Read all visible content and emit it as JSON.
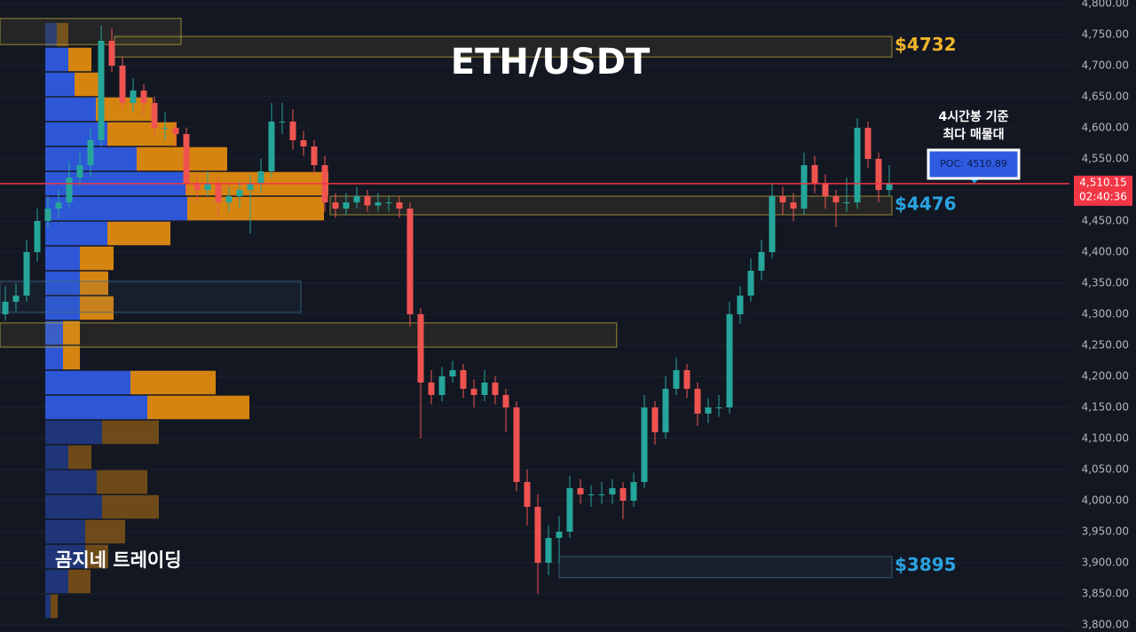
{
  "chart_data": {
    "type": "candlestick",
    "title": "ETH/USDT",
    "watermark": "곰지네 트레이딩",
    "annotation": [
      "4시간봉 기준",
      "최다 매물대"
    ],
    "poc": {
      "value": 4510.89,
      "label": "POC: 4510.89"
    },
    "current_price": {
      "value": 4510.15,
      "label": "4,510.15"
    },
    "countdown": "02:40:36",
    "up_color": "#26a69a",
    "down_color": "#ef5350",
    "grid": true,
    "ylim": [
      3800,
      4800
    ],
    "yticks": [
      {
        "value": 3800,
        "label": "3,800.00"
      },
      {
        "value": 3850,
        "label": "3,850.00"
      },
      {
        "value": 3900,
        "label": "3,900.00"
      },
      {
        "value": 3950,
        "label": "3,950.00"
      },
      {
        "value": 4000,
        "label": "4,000.00"
      },
      {
        "value": 4050,
        "label": "4,050.00"
      },
      {
        "value": 4100,
        "label": "4,100.00"
      },
      {
        "value": 4150,
        "label": "4,150.00"
      },
      {
        "value": 4200,
        "label": "4,200.00"
      },
      {
        "value": 4250,
        "label": "4,250.00"
      },
      {
        "value": 4300,
        "label": "4,300.00"
      },
      {
        "value": 4350,
        "label": "4,350.00"
      },
      {
        "value": 4400,
        "label": "4,400.00"
      },
      {
        "value": 4450,
        "label": "4,450.00"
      },
      {
        "value": 4500,
        "label": "4,500.00"
      },
      {
        "value": 4550,
        "label": "4,550.00"
      },
      {
        "value": 4600,
        "label": "4,600.00"
      },
      {
        "value": 4650,
        "label": "4,650.00"
      },
      {
        "value": 4700,
        "label": "4,700.00"
      },
      {
        "value": 4750,
        "label": "4,750.00"
      },
      {
        "value": 4800,
        "label": "4,800.00"
      }
    ],
    "open": [
      4300,
      4320,
      4330,
      4400,
      4450,
      4470,
      4480,
      4520,
      4540,
      4580,
      4740,
      4700,
      4640,
      4660,
      4640,
      4600,
      4600,
      4590,
      4510,
      4500,
      4510,
      4480,
      4490,
      4500,
      4510,
      4530,
      4610,
      4610,
      4580,
      4570,
      4540,
      4480,
      4470,
      4480,
      4490,
      4475,
      4480,
      4480,
      4470,
      4300,
      4190,
      4170,
      4200,
      4210,
      4180,
      4170,
      4190,
      4170,
      4150,
      4030,
      3990,
      3900,
      3940,
      3950,
      4020,
      4010,
      4010,
      4010,
      4020,
      4000,
      4030,
      4150,
      4110,
      4180,
      4210,
      4180,
      4140,
      4150,
      4150,
      4300,
      4330,
      4370,
      4400,
      4490,
      4480,
      4470,
      4540,
      4510,
      4490,
      4480,
      4480,
      4600,
      4550,
      4500
    ],
    "high": [
      4345,
      4350,
      4420,
      4470,
      4490,
      4500,
      4545,
      4560,
      4600,
      4765,
      4760,
      4715,
      4680,
      4670,
      4650,
      4625,
      4610,
      4600,
      4525,
      4530,
      4520,
      4505,
      4515,
      4525,
      4550,
      4640,
      4640,
      4630,
      4595,
      4580,
      4555,
      4495,
      4495,
      4505,
      4500,
      4495,
      4490,
      4490,
      4480,
      4310,
      4210,
      4215,
      4225,
      4220,
      4195,
      4210,
      4200,
      4180,
      4160,
      4050,
      4010,
      3960,
      3975,
      4040,
      4035,
      4025,
      4030,
      4035,
      4030,
      4045,
      4170,
      4160,
      4200,
      4230,
      4220,
      4190,
      4165,
      4170,
      4320,
      4345,
      4390,
      4420,
      4510,
      4505,
      4495,
      4560,
      4555,
      4525,
      4500,
      4520,
      4615,
      4610,
      4560,
      4540
    ],
    "low": [
      4290,
      4305,
      4320,
      4385,
      4440,
      4455,
      4470,
      4505,
      4520,
      4570,
      4690,
      4630,
      4625,
      4620,
      4585,
      4580,
      4570,
      4495,
      4480,
      4490,
      4455,
      4465,
      4470,
      4430,
      4495,
      4520,
      4590,
      4565,
      4555,
      4525,
      4465,
      4455,
      4460,
      4470,
      4465,
      4465,
      4465,
      4455,
      4280,
      4100,
      4155,
      4160,
      4190,
      4165,
      4150,
      4160,
      4155,
      4110,
      4015,
      3960,
      3850,
      3880,
      3900,
      3940,
      3995,
      3990,
      3995,
      3995,
      3970,
      3990,
      4020,
      4090,
      4100,
      4170,
      4165,
      4120,
      4125,
      4135,
      4140,
      4285,
      4320,
      4355,
      4390,
      4460,
      4450,
      4460,
      4495,
      4470,
      4440,
      4465,
      4470,
      4535,
      4480,
      4490
    ],
    "close": [
      4320,
      4330,
      4400,
      4450,
      4470,
      4480,
      4520,
      4540,
      4580,
      4740,
      4700,
      4640,
      4660,
      4640,
      4600,
      4600,
      4590,
      4510,
      4500,
      4510,
      4480,
      4490,
      4500,
      4510,
      4530,
      4610,
      4610,
      4580,
      4570,
      4540,
      4480,
      4470,
      4480,
      4490,
      4475,
      4480,
      4480,
      4470,
      4300,
      4190,
      4170,
      4200,
      4210,
      4180,
      4170,
      4190,
      4170,
      4150,
      4030,
      3990,
      3900,
      3940,
      3950,
      4020,
      4010,
      4010,
      4010,
      4020,
      4000,
      4030,
      4150,
      4110,
      4180,
      4210,
      4180,
      4140,
      4150,
      4150,
      4300,
      4330,
      4370,
      4400,
      4490,
      4480,
      4470,
      4540,
      4510,
      4490,
      4480,
      4480,
      4600,
      4550,
      4500,
      4510.15
    ],
    "zones": [
      {
        "low": 4734,
        "high": 4776,
        "from": -0.5,
        "to": 16.5,
        "color": "#b8a23a"
      },
      {
        "low": 4714,
        "high": 4747,
        "from": 10.25,
        "to": 83.25,
        "color": "#b8a23a",
        "level": {
          "value": 4732,
          "label": "$4732"
        },
        "label_color": "#f0b429"
      },
      {
        "low": 4460,
        "high": 4490,
        "from": 30.5,
        "to": 83.25,
        "color": "#b8a23a",
        "level": {
          "value": 4476,
          "label": "$4476"
        },
        "label_color": "#29a3e0"
      },
      {
        "low": 4303,
        "high": 4353,
        "from": -0.5,
        "to": 27.75,
        "color": "#3d6a8a"
      },
      {
        "low": 4247,
        "high": 4286,
        "from": -0.5,
        "to": 57.4,
        "color": "#b8a23a"
      },
      {
        "low": 3876,
        "high": 3910,
        "from": 52,
        "to": 83.25,
        "color": "#3d6a8a",
        "level": {
          "value": 3895,
          "label": "$3895"
        },
        "label_color": "#29a3e0"
      }
    ],
    "volume_profile": {
      "prices": [
        4750,
        4710,
        4670,
        4630,
        4590,
        4550,
        4510,
        4470,
        4430,
        4390,
        4350,
        4310,
        4270,
        4230,
        4190,
        4150,
        4110,
        4070,
        4030,
        3990,
        3950,
        3910,
        3870,
        3830
      ],
      "up": [
        13,
        26,
        33,
        57,
        70,
        103,
        158,
        160,
        70,
        39,
        39,
        39,
        20,
        20,
        96,
        115,
        64,
        26,
        58,
        64,
        45,
        45,
        26,
        6
      ],
      "down": [
        13,
        26,
        32,
        64,
        78,
        102,
        161,
        154,
        71,
        38,
        32,
        38,
        19,
        19,
        96,
        115,
        64,
        26,
        57,
        64,
        45,
        26,
        25,
        8
      ],
      "up_color": "#2e5be0",
      "down_color": "#e08a10",
      "value_area": [
        4130,
        4730
      ]
    }
  }
}
